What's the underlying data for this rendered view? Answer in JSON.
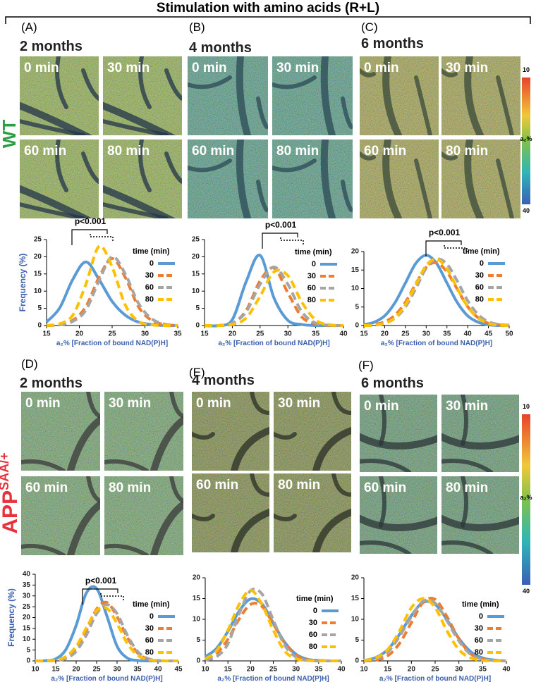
{
  "title": "Stimulation with amino acids (R+L)",
  "row_labels": {
    "wt": "WT",
    "app": "APP",
    "app_sup": "SAA/+"
  },
  "panels": [
    {
      "label": "(A)",
      "age": "2 months",
      "images": [
        "0 min",
        "30 min",
        "60 min",
        "80 min"
      ]
    },
    {
      "label": "(B)",
      "age": "4 months",
      "images": [
        "0 min",
        "30 min",
        "60 min",
        "80 min"
      ]
    },
    {
      "label": "(C)",
      "age": "6 months",
      "images": [
        "0 min",
        "30 min",
        "60 min",
        "80 min"
      ],
      "colorbar": {
        "top": 10,
        "label": "a₂%",
        "bottom": 40
      }
    },
    {
      "label": "(D)",
      "age": "2 months",
      "images": [
        "0 min",
        "30 min",
        "60 min",
        "80 min"
      ]
    },
    {
      "label": "(E)",
      "age": "4 months",
      "images": [
        "0 min",
        "30 min",
        "60 min",
        "80 min"
      ]
    },
    {
      "label": "(F)",
      "age": "6 months",
      "images": [
        "0 min",
        "30 min",
        "60 min",
        "80 min"
      ],
      "colorbar": {
        "top": 10,
        "label": "a₂%",
        "bottom": 40
      }
    }
  ],
  "chart_data": [
    {
      "type": "line",
      "y_label": "Frequency (%)",
      "x_label": "a₂% [Fraction of bound NAD(P)H]",
      "legend_title": "time (min)",
      "annotation": "p<0.001",
      "x": [
        15,
        17,
        19,
        21,
        23,
        25,
        27,
        29,
        31,
        33,
        35
      ],
      "xlim": [
        15,
        35
      ],
      "xticks": [
        15,
        20,
        25,
        30,
        35
      ],
      "ylim": [
        0,
        25
      ],
      "yticks": [
        0,
        5,
        10,
        15,
        20,
        25
      ],
      "series": [
        {
          "name": "0",
          "color": "#5b9bd5",
          "dashed": false,
          "values": [
            1.0,
            5.1,
            13.4,
            18.5,
            13.4,
            7,
            3,
            1,
            0.3,
            0,
            0
          ]
        },
        {
          "name": "30",
          "color": "#ed7d31",
          "dashed": true,
          "values": [
            0,
            0.3,
            1.5,
            5.5,
            14,
            19.5,
            14,
            5.5,
            1.5,
            0.3,
            0
          ]
        },
        {
          "name": "60",
          "color": "#a5a5a5",
          "dashed": true,
          "values": [
            0,
            0.2,
            1.2,
            4.5,
            13,
            20,
            15,
            6.5,
            2,
            0.4,
            0
          ]
        },
        {
          "name": "80",
          "color": "#ffc000",
          "dashed": true,
          "values": [
            0,
            0.5,
            3,
            12,
            23,
            17,
            6,
            1.2,
            0.2,
            0,
            0
          ]
        }
      ]
    },
    {
      "type": "line",
      "x_label": "a₂% [Fraction of bound NAD(P)H]",
      "legend_title": "time (min)",
      "annotation": "p<0.001",
      "x": [
        15,
        17.5,
        20,
        22.5,
        25,
        27.5,
        30,
        32.5,
        35,
        37.5,
        40
      ],
      "xlim": [
        15,
        40
      ],
      "xticks": [
        15,
        20,
        25,
        30,
        35,
        40
      ],
      "ylim": [
        0,
        25
      ],
      "yticks": [
        0,
        5,
        10,
        15,
        20,
        25
      ],
      "series": [
        {
          "name": "0",
          "color": "#5b9bd5",
          "dashed": false,
          "values": [
            0,
            0,
            1.7,
            12.8,
            20.4,
            8,
            1.5,
            0.3,
            0,
            0,
            0
          ]
        },
        {
          "name": "30",
          "color": "#ed7d31",
          "dashed": true,
          "values": [
            0,
            0,
            0.6,
            4.4,
            13,
            16.7,
            9.5,
            2.5,
            0.5,
            0,
            0
          ]
        },
        {
          "name": "60",
          "color": "#a5a5a5",
          "dashed": true,
          "values": [
            0,
            0,
            0.7,
            4,
            12,
            17,
            12,
            4,
            0.7,
            0.1,
            0
          ]
        },
        {
          "name": "80",
          "color": "#ffc000",
          "dashed": true,
          "values": [
            0,
            0,
            0.3,
            2.2,
            8.5,
            15.6,
            14.5,
            6.8,
            1.6,
            0.2,
            0
          ]
        }
      ]
    },
    {
      "type": "line",
      "x_label": "a₂% [Fraction of bound NAD(P)H]",
      "legend_title": "time (min)",
      "annotation": "p<0.001",
      "x": [
        15,
        17.5,
        20,
        22.5,
        25,
        27.5,
        30,
        32.5,
        35,
        37.5,
        40,
        42.5,
        45,
        47.5,
        50
      ],
      "xlim": [
        15,
        50
      ],
      "xticks": [
        15,
        20,
        25,
        30,
        35,
        40,
        45,
        50
      ],
      "ylim": [
        0,
        20
      ],
      "yticks": [
        0,
        5,
        10,
        15,
        20
      ],
      "series": [
        {
          "name": "0",
          "color": "#5b9bd5",
          "dashed": false,
          "values": [
            0.2,
            0.9,
            2.6,
            6.2,
            11.5,
            16.8,
            19,
            16.8,
            11.5,
            6.2,
            2.6,
            0.9,
            0.2,
            0,
            0
          ]
        },
        {
          "name": "30",
          "color": "#ed7d31",
          "dashed": true,
          "values": [
            0,
            0.3,
            1,
            2.8,
            6.3,
            11.3,
            15.7,
            17,
            14.5,
            9.8,
            5.1,
            2.1,
            0.6,
            0.2,
            0
          ]
        },
        {
          "name": "60",
          "color": "#a5a5a5",
          "dashed": true,
          "values": [
            0,
            0.1,
            0.6,
            2,
            5,
            10,
            15.5,
            18,
            16.6,
            12,
            6.7,
            3,
            1,
            0.3,
            0.1
          ]
        },
        {
          "name": "80",
          "color": "#ffc000",
          "dashed": true,
          "values": [
            0,
            0.1,
            0.6,
            2.1,
            5.6,
            11,
            16.2,
            18,
            15.3,
            10,
            5.1,
            2,
            0.6,
            0.1,
            0
          ]
        }
      ]
    },
    {
      "type": "line",
      "y_label": "Frequency (%)",
      "x_label": "a₂% [Fraction of bound NAD(P)H]",
      "legend_title": "time (min)",
      "annotation": "p<0.001",
      "x": [
        10,
        12.5,
        15,
        17.5,
        20,
        22.5,
        25,
        27.5,
        30,
        32.5,
        35,
        37.5,
        40,
        42.5,
        45
      ],
      "xlim": [
        10,
        45
      ],
      "xticks": [
        10,
        15,
        20,
        25,
        30,
        35,
        40,
        45
      ],
      "ylim": [
        0,
        40
      ],
      "yticks": [
        0,
        5,
        10,
        15,
        20,
        25,
        30,
        35,
        40
      ],
      "series": [
        {
          "name": "0",
          "color": "#5b9bd5",
          "dashed": false,
          "values": [
            0,
            0.1,
            0.9,
            5.3,
            16.4,
            31.4,
            33.4,
            20.8,
            6.8,
            1.3,
            0.2,
            0,
            0,
            0,
            0
          ]
        },
        {
          "name": "30",
          "color": "#ed7d31",
          "dashed": true,
          "values": [
            0,
            0,
            0.3,
            1.6,
            5.8,
            14,
            23.9,
            27,
            20.4,
            10.9,
            3.7,
            0.9,
            0.1,
            0,
            0
          ]
        },
        {
          "name": "60",
          "color": "#a5a5a5",
          "dashed": true,
          "values": [
            0,
            0,
            0.2,
            1.1,
            4.4,
            11.9,
            21.8,
            26,
            21.8,
            11.9,
            4.4,
            1.1,
            0.2,
            0,
            0
          ]
        },
        {
          "name": "80",
          "color": "#ffc000",
          "dashed": true,
          "values": [
            0,
            0,
            0.4,
            2,
            6.7,
            15.2,
            23.3,
            24.3,
            17.2,
            8.1,
            2.6,
            0.6,
            0.1,
            0,
            0
          ]
        }
      ]
    },
    {
      "type": "line",
      "x_label": "a₂% [Fraction of bound NAD(P)H]",
      "legend_title": "time (min)",
      "x": [
        10,
        12.5,
        15,
        17.5,
        20,
        22.5,
        25,
        27.5,
        30,
        32.5,
        35,
        37.5,
        40
      ],
      "xlim": [
        10,
        40
      ],
      "xticks": [
        10,
        15,
        20,
        25,
        30,
        35,
        40
      ],
      "ylim": [
        0,
        20
      ],
      "yticks": [
        0,
        5,
        10,
        15,
        20
      ],
      "series": [
        {
          "name": "0",
          "color": "#5b9bd5",
          "dashed": false,
          "values": [
            1,
            3,
            7.1,
            12,
            14.9,
            13.7,
            9.1,
            4.5,
            1.6,
            0.4,
            0.1,
            0,
            0
          ]
        },
        {
          "name": "30",
          "color": "#ed7d31",
          "dashed": true,
          "values": [
            0.5,
            1.8,
            5.2,
            10.1,
            13.6,
            13.1,
            8.9,
            4.3,
            1.4,
            0.3,
            0.1,
            0,
            0
          ]
        },
        {
          "name": "60",
          "color": "#a5a5a5",
          "dashed": true,
          "values": [
            0.2,
            1,
            4.1,
            11.4,
            16.9,
            16.1,
            9.8,
            3.8,
            0.9,
            0.1,
            0,
            0,
            0
          ]
        },
        {
          "name": "80",
          "color": "#ffc000",
          "dashed": true,
          "values": [
            0.5,
            2.4,
            7.4,
            13.6,
            17,
            13.6,
            7.4,
            2.4,
            0.5,
            0.1,
            0,
            0,
            0
          ]
        }
      ]
    },
    {
      "type": "line",
      "x_label": "a₂% [Fraction of bound NAD(P)H]",
      "legend_title": "time (min)",
      "x": [
        10,
        12.5,
        15,
        17.5,
        20,
        22.5,
        25,
        27.5,
        30,
        32.5,
        35,
        37.5,
        40
      ],
      "xlim": [
        10,
        40
      ],
      "xticks": [
        10,
        15,
        20,
        25,
        30,
        35,
        40
      ],
      "ylim": [
        0,
        20
      ],
      "yticks": [
        0,
        5,
        10,
        15,
        20
      ],
      "series": [
        {
          "name": "0",
          "color": "#5b9bd5",
          "dashed": false,
          "values": [
            0.1,
            0.8,
            2.7,
            6.4,
            10.9,
            14.1,
            13.6,
            9.9,
            5.4,
            2.2,
            0.7,
            0.2,
            0
          ]
        },
        {
          "name": "30",
          "color": "#ed7d31",
          "dashed": true,
          "values": [
            0,
            0.2,
            1.2,
            4.2,
            9.2,
            14.1,
            14.8,
            10.6,
            5.3,
            1.7,
            0.4,
            0.1,
            0
          ]
        },
        {
          "name": "60",
          "color": "#a5a5a5",
          "dashed": true,
          "values": [
            0.1,
            0.5,
            2.1,
            5.9,
            10.6,
            14.4,
            13.9,
            9.6,
            4.8,
            1.5,
            0.4,
            0.1,
            0
          ]
        },
        {
          "name": "80",
          "color": "#ffc000",
          "dashed": true,
          "values": [
            0.1,
            0.7,
            2.7,
            7.2,
            12.8,
            15,
            12.8,
            7.2,
            2.7,
            0.7,
            0.1,
            0,
            0
          ]
        }
      ]
    }
  ]
}
